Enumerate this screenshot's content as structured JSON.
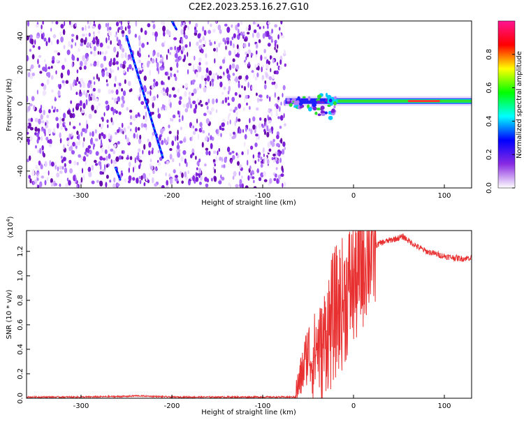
{
  "title": "C2E2.2023.253.16.27.G10",
  "chart_data": [
    {
      "type": "heatmap",
      "xlabel": "Height of straight line (km)",
      "ylabel": "Frequency (Hz)",
      "xlim": [
        -360,
        130
      ],
      "ylim": [
        -50,
        49
      ],
      "xticks": [
        -300,
        -200,
        -100,
        0,
        100
      ],
      "yticks": [
        -40,
        -20,
        0,
        20,
        40
      ],
      "colorbar": {
        "label": "Normalized spectral amplitude",
        "range": [
          0,
          1
        ],
        "ticks": [
          0.0,
          0.2,
          0.4,
          0.6,
          0.8
        ],
        "colors": [
          "#ffffff",
          "#8a2be2",
          "#0000ff",
          "#00ffff",
          "#00ff00",
          "#ffff00",
          "#ff0000",
          "#ff1493"
        ]
      },
      "features": {
        "noise_region_x": [
          -360,
          -75
        ],
        "streaks": [
          {
            "x": [
              -250,
              -210
            ],
            "y": [
              40,
              -32
            ]
          },
          {
            "x": [
              -262,
              -257
            ],
            "y": [
              -38,
              -45
            ]
          },
          {
            "x": [
              -200,
              -195
            ],
            "y": [
              49,
              44
            ]
          }
        ],
        "carrier_band": {
          "x": [
            -75,
            130
          ],
          "center_freq": 1.5
        }
      }
    },
    {
      "type": "line",
      "xlabel": "Height of straight line (km)",
      "ylabel": "SNR (10 * v/v)",
      "y_scale_label": "(x10",
      "y_scale_exp": "4",
      "xlim": [
        -360,
        130
      ],
      "ylim": [
        0,
        1.37
      ],
      "xticks": [
        -300,
        -200,
        -100,
        0,
        100
      ],
      "yticks": [
        0.0,
        0.2,
        0.4,
        0.6,
        0.8,
        1.0,
        1.2
      ],
      "series_color": "#e83030",
      "x": [
        -360,
        -300,
        -250,
        -240,
        -200,
        -150,
        -100,
        -65,
        -60,
        -55,
        -50,
        -45,
        -40,
        -35,
        -30,
        -25,
        -20,
        -15,
        -10,
        -5,
        0,
        5,
        10,
        15,
        20,
        25,
        30,
        40,
        50,
        55,
        60,
        70,
        80,
        90,
        100,
        110,
        120,
        130
      ],
      "y": [
        0.01,
        0.01,
        0.015,
        0.02,
        0.01,
        0.01,
        0.01,
        0.01,
        0.12,
        0.25,
        0.4,
        0.3,
        0.45,
        0.35,
        0.55,
        0.6,
        0.7,
        0.75,
        0.8,
        0.9,
        0.95,
        1.0,
        1.1,
        1.2,
        1.22,
        1.25,
        1.27,
        1.29,
        1.31,
        1.32,
        1.29,
        1.24,
        1.2,
        1.18,
        1.16,
        1.15,
        1.14,
        1.15
      ]
    }
  ]
}
